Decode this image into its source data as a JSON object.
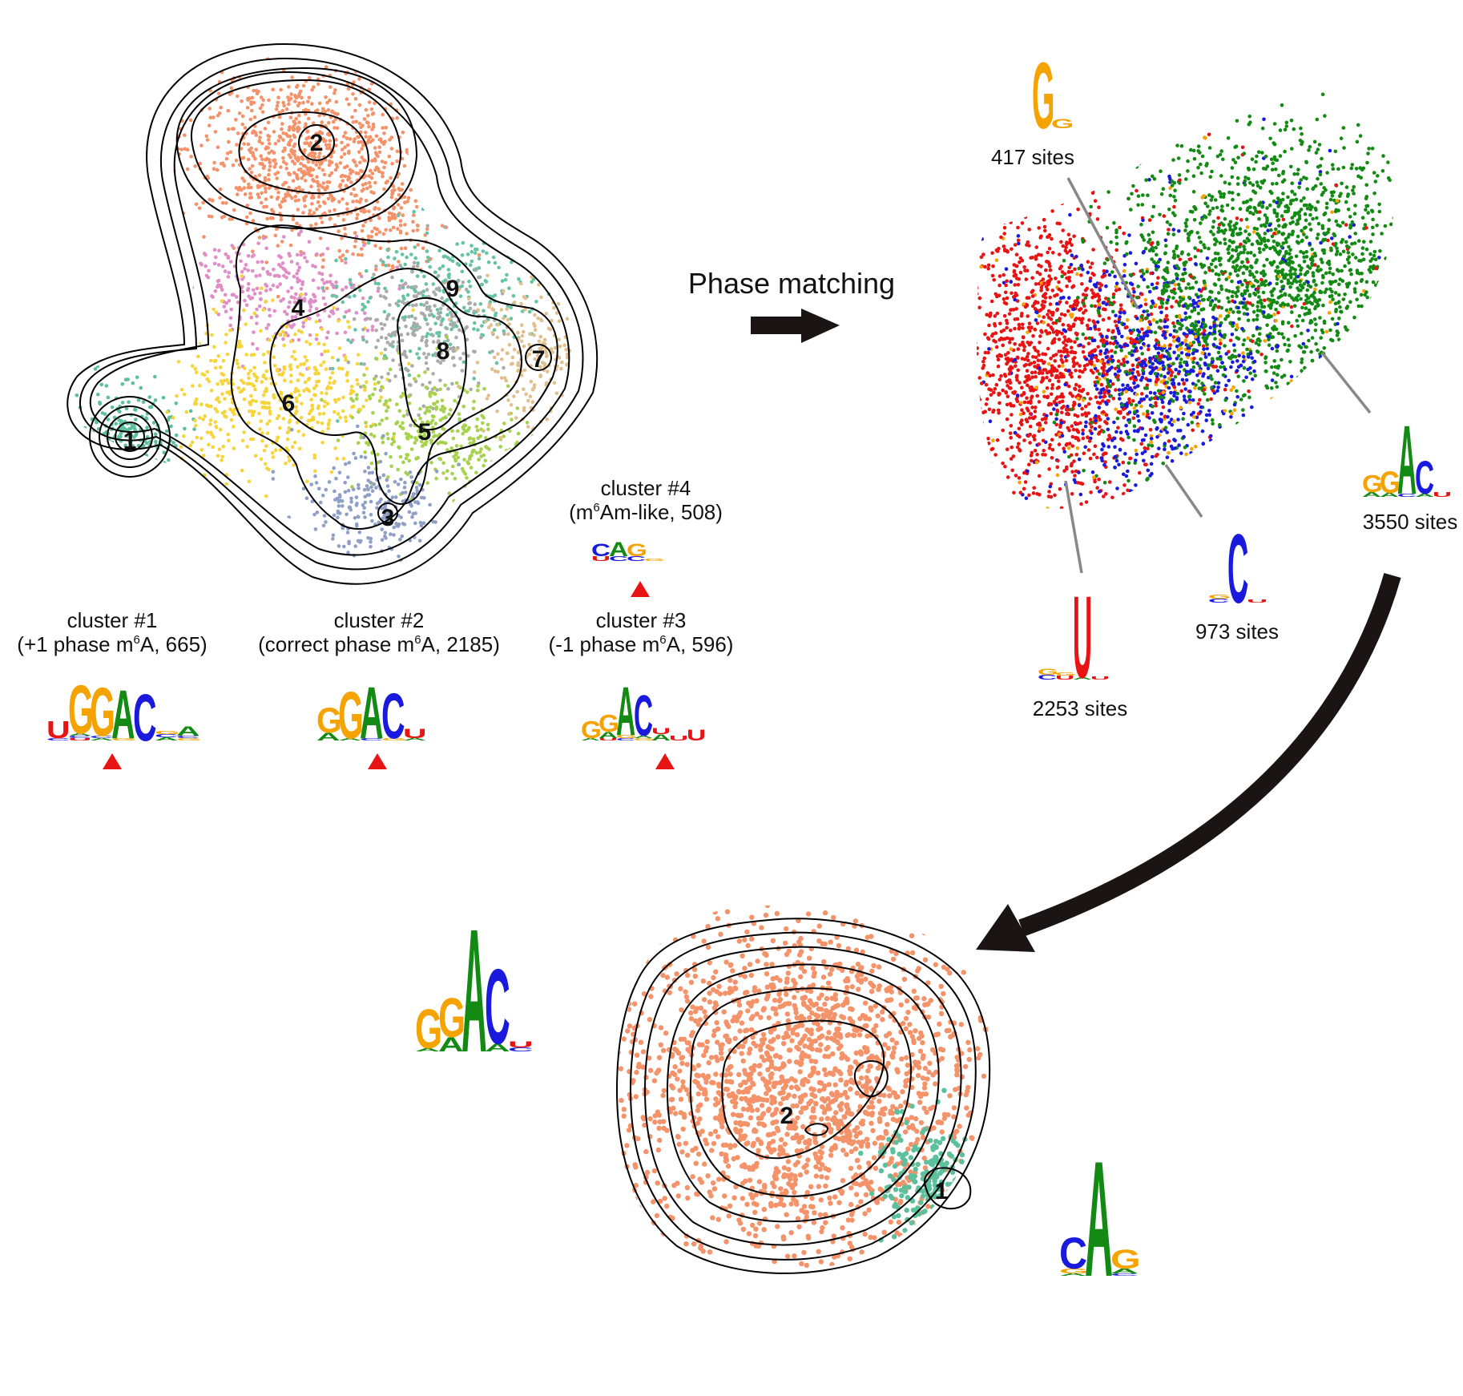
{
  "colors": {
    "A": "#138a13",
    "C": "#1a1adc",
    "G": "#f5a300",
    "U": "#e81313",
    "cluster_1": "#5cc09c",
    "cluster_2": "#f4926a",
    "cluster_3": "#8f9fc6",
    "cluster_4": "#df8ec6",
    "cluster_5": "#a7d24e",
    "cluster_6": "#f6d53c",
    "cluster_7": "#e1c08f",
    "cluster_8": "#ababab",
    "cluster_9": "#66c4a5",
    "red_site": "#e81313",
    "blue_site": "#1a1adc",
    "green_site": "#138a13",
    "orange_site": "#f5a300",
    "arrow": "#1a1414",
    "marker": "#e81313"
  },
  "top_left_map": {
    "cluster_numbers": [
      "1",
      "2",
      "3",
      "4",
      "5",
      "6",
      "7",
      "8",
      "9"
    ]
  },
  "cluster_labels": [
    {
      "title": "cluster #1",
      "desc_pre": "(+1 phase m",
      "sup": "6",
      "desc_post": "A, 665)"
    },
    {
      "title": "cluster #2",
      "desc_pre": "(correct phase m",
      "sup": "6",
      "desc_post": "A, 2185)"
    },
    {
      "title": "cluster #3",
      "desc_pre": "(-1 phase m",
      "sup": "6",
      "desc_post": "A, 596)"
    },
    {
      "title": "cluster #4",
      "desc_pre": "(m",
      "sup": "6",
      "desc_post": "Am-like, 508)"
    }
  ],
  "arrow_label": "Phase matching",
  "site_labels": {
    "g": "417 sites",
    "ggac": "3550 sites",
    "c": "973 sites",
    "u": "2253 sites"
  },
  "bottom_map": {
    "cluster_numbers": [
      "2",
      "1"
    ]
  },
  "icons": [
    "right-arrow-icon",
    "curved-arrow-icon",
    "red-triangle-marker-icon"
  ]
}
